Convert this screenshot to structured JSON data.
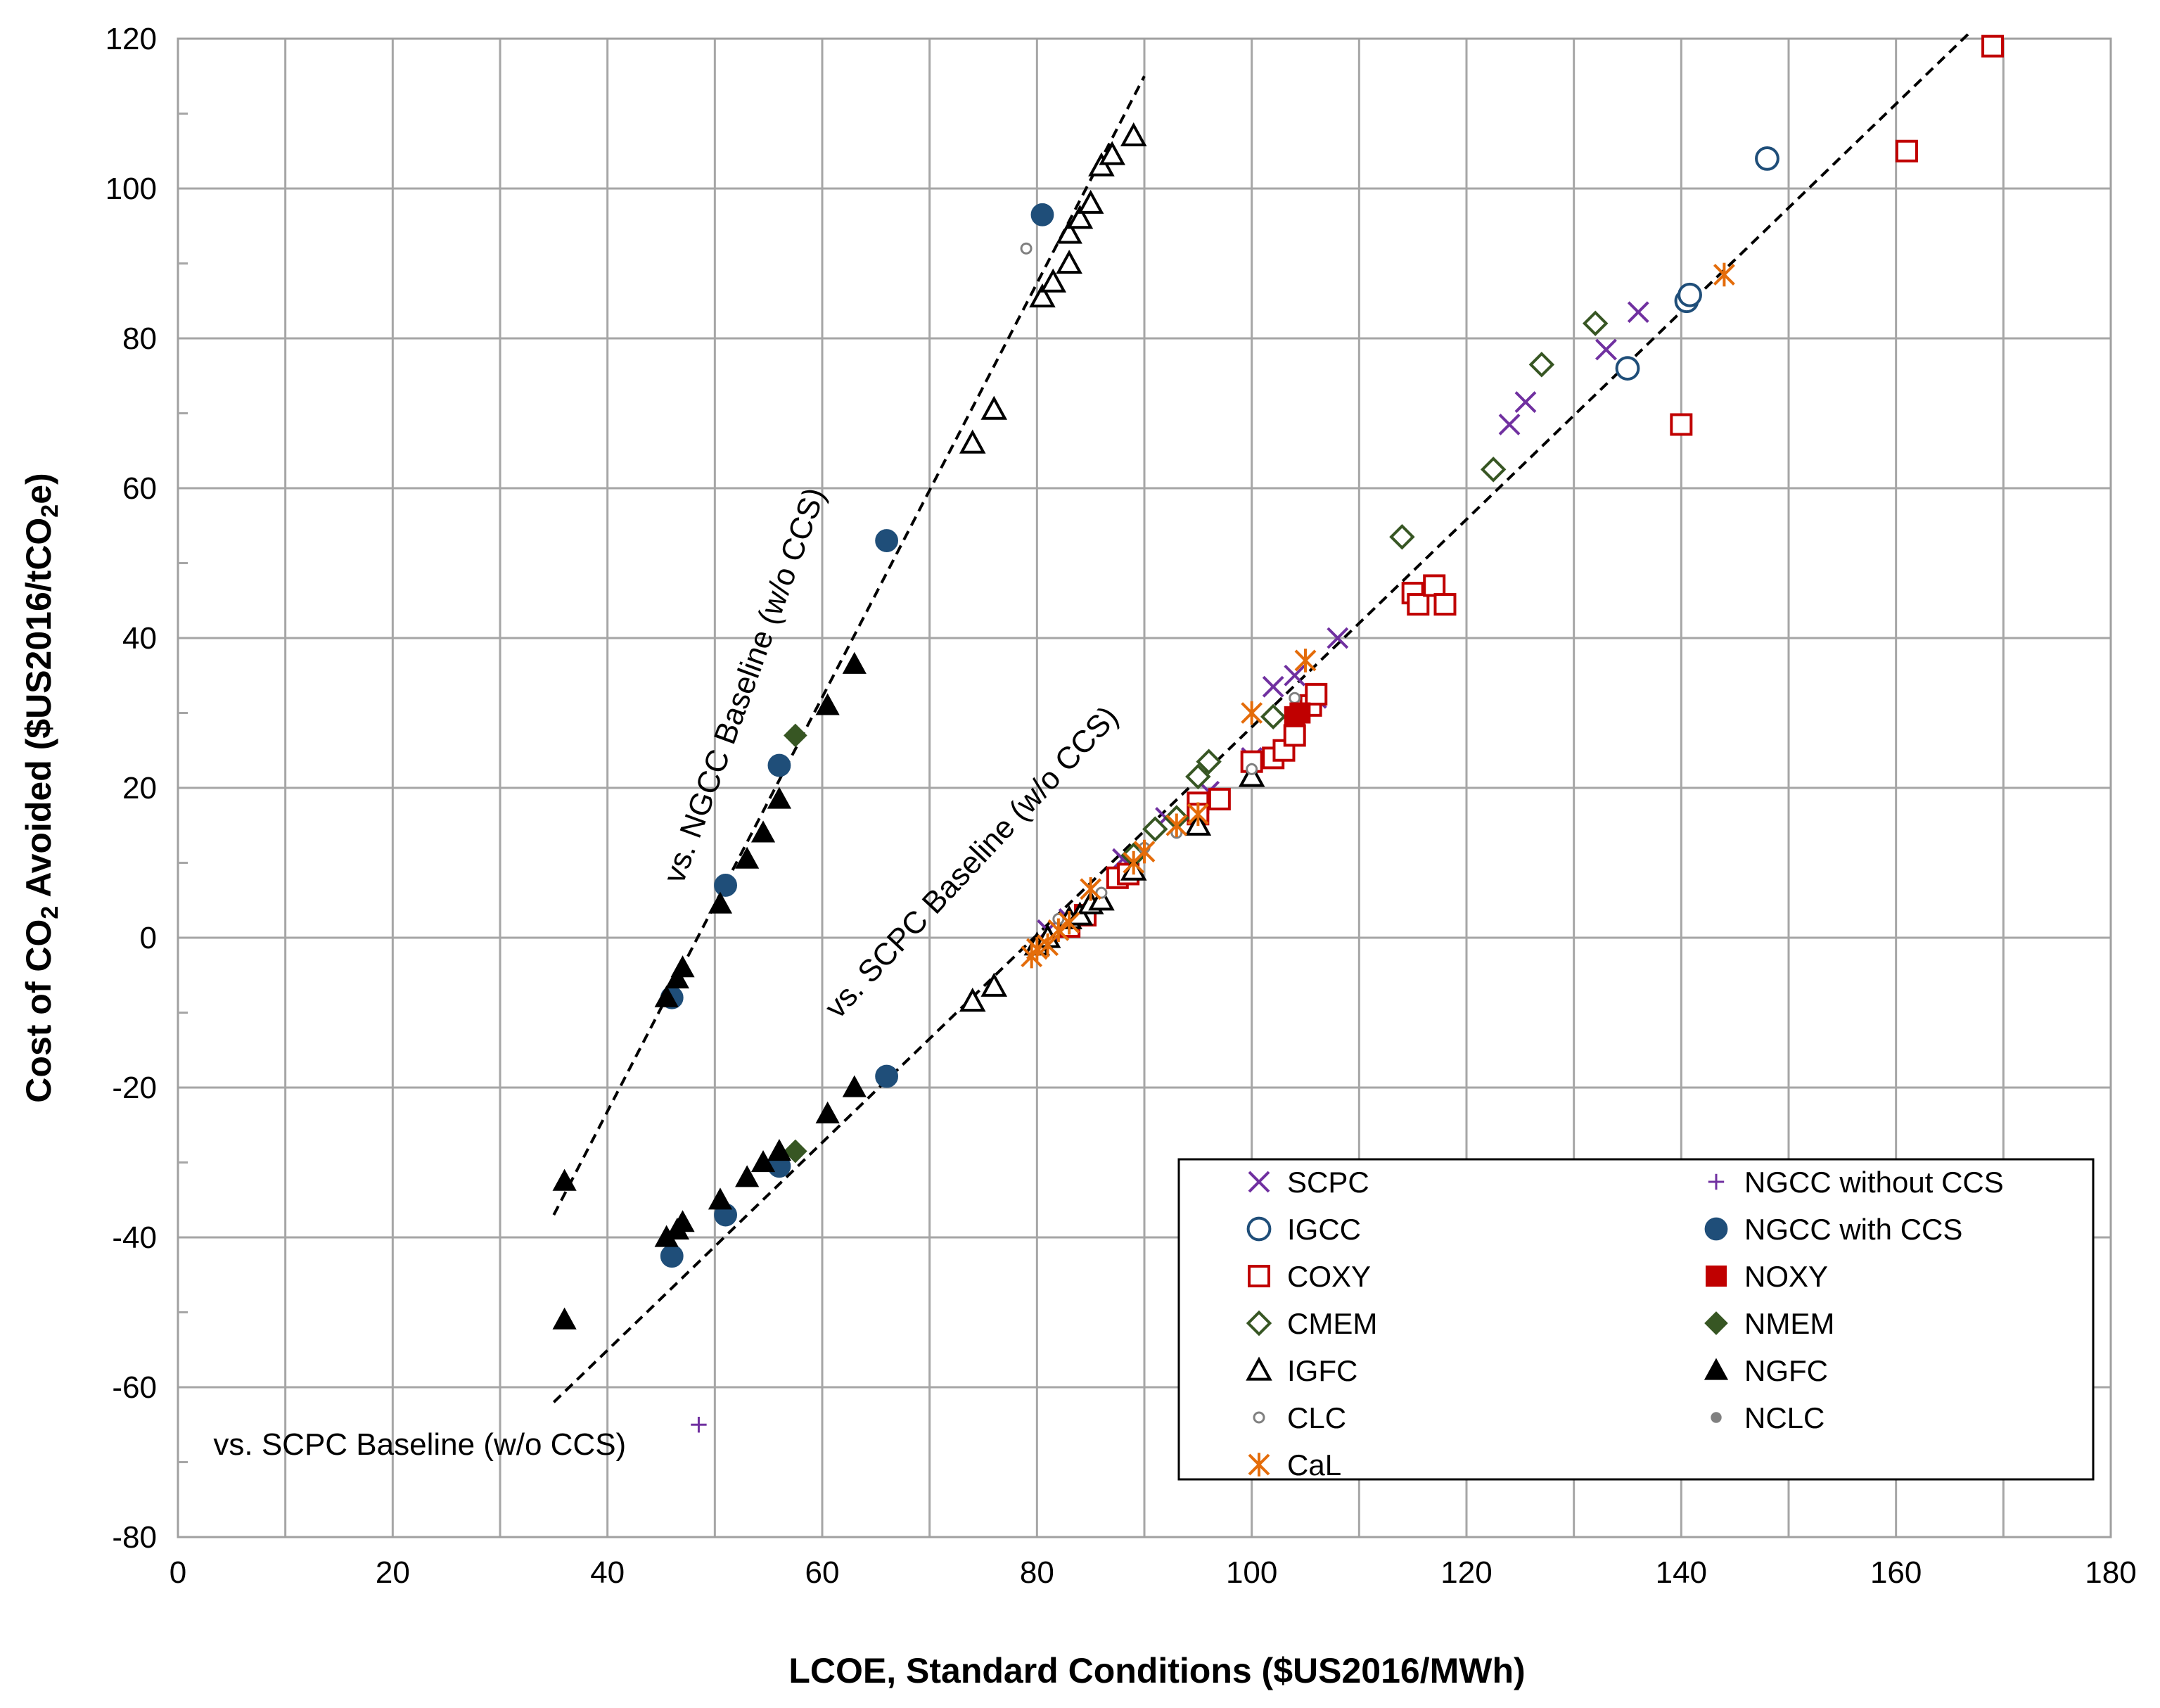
{
  "chart_data": {
    "type": "scatter",
    "title": "",
    "xlabel": "LCOE, Standard Conditions ($US2016/MWh)",
    "ylabel_parts": {
      "before_sub": "Cost of CO",
      "sub": "2",
      "after_sub": " Avoided ($US2016/tCO",
      "sub2": "2",
      "after_sub2": "e)"
    },
    "xlim": [
      0,
      180
    ],
    "ylim": [
      -80,
      120
    ],
    "x_ticks": [
      0,
      20,
      40,
      60,
      80,
      100,
      120,
      140,
      160,
      180
    ],
    "y_ticks": [
      -80,
      -60,
      -40,
      -20,
      0,
      20,
      40,
      60,
      80,
      100,
      120
    ],
    "grid": true,
    "legend_position": "bottom-right",
    "colors": {
      "purple": "#7030a0",
      "blue": "#1f4e79",
      "red": "#c00000",
      "green": "#375623",
      "black": "#000000",
      "gray": "#808080",
      "orange": "#e46c0a"
    },
    "trendlines": [
      {
        "name": "vs. NGCC Baseline (w/o CCS)",
        "x": [
          35,
          90
        ],
        "y": [
          -37,
          115
        ]
      },
      {
        "name": "vs. SCPC Baseline (w/o CCS)",
        "x": [
          35,
          167
        ],
        "y": [
          -62,
          121
        ]
      }
    ],
    "annotations": [
      {
        "text": "vs. NGCC Baseline (w/o CCS)",
        "x": 47,
        "y": 7,
        "angle": -70
      },
      {
        "text": "vs. SCPC Baseline (w/o CCS)",
        "x": 61.5,
        "y": -11,
        "angle": -47
      },
      {
        "text": "vs. SCPC Baseline (w/o CCS)",
        "x": 3.3,
        "y": -69,
        "angle": 0
      }
    ],
    "series": [
      {
        "name": "SCPC",
        "marker": "x",
        "color": "#7030a0",
        "points": [
          [
            102,
            33.5
          ],
          [
            104,
            35
          ],
          [
            108,
            40
          ],
          [
            124,
            68.5
          ],
          [
            125.5,
            71.5
          ],
          [
            133,
            78.5
          ],
          [
            136,
            83.5
          ],
          [
            81,
            1
          ],
          [
            83,
            2.5
          ],
          [
            88,
            10.5
          ],
          [
            92,
            16
          ],
          [
            96,
            19.5
          ],
          [
            100,
            24
          ],
          [
            106,
            32
          ]
        ]
      },
      {
        "name": "IGCC",
        "marker": "circle-open",
        "color": "#1f4e79",
        "points": [
          [
            135,
            76
          ],
          [
            140.5,
            85
          ],
          [
            140.8,
            85.8
          ],
          [
            148,
            104
          ]
        ]
      },
      {
        "name": "COXY",
        "marker": "square-open",
        "color": "#c00000",
        "points": [
          [
            83,
            1.5
          ],
          [
            84.5,
            3
          ],
          [
            87.5,
            8
          ],
          [
            88.5,
            8.5
          ],
          [
            95,
            18
          ],
          [
            95,
            16.5
          ],
          [
            97,
            18.5
          ],
          [
            100,
            23.5
          ],
          [
            102,
            24
          ],
          [
            103,
            25
          ],
          [
            104,
            27
          ],
          [
            105.5,
            31
          ],
          [
            106,
            32.5
          ],
          [
            115,
            46
          ],
          [
            115.5,
            44.5
          ],
          [
            117,
            47
          ],
          [
            118,
            44.5
          ],
          [
            140,
            68.5
          ],
          [
            161,
            105
          ],
          [
            169,
            119
          ]
        ]
      },
      {
        "name": "CMEM",
        "marker": "diamond-open",
        "color": "#375623",
        "points": [
          [
            89,
            11
          ],
          [
            91,
            14.5
          ],
          [
            93,
            16
          ],
          [
            95,
            21.5
          ],
          [
            96,
            23.5
          ],
          [
            102,
            29.5
          ],
          [
            114,
            53.5
          ],
          [
            122.5,
            62.5
          ],
          [
            127,
            76.5
          ],
          [
            132,
            82
          ]
        ]
      },
      {
        "name": "IGFC",
        "marker": "triangle-open",
        "color": "#000000",
        "points": [
          [
            74,
            -8.5
          ],
          [
            76,
            -6.5
          ],
          [
            80,
            -1
          ],
          [
            81,
            0
          ],
          [
            83,
            2.5
          ],
          [
            84,
            3
          ],
          [
            85,
            4.5
          ],
          [
            86,
            5
          ],
          [
            89,
            9
          ],
          [
            95,
            15
          ],
          [
            100,
            21.5
          ],
          [
            74,
            66
          ],
          [
            76,
            70.5
          ],
          [
            80.5,
            85.5
          ],
          [
            81.5,
            87.5
          ],
          [
            83,
            90
          ],
          [
            83,
            94
          ],
          [
            84,
            96
          ],
          [
            85,
            98
          ],
          [
            86,
            103
          ],
          [
            87,
            104.5
          ],
          [
            89,
            107
          ]
        ]
      },
      {
        "name": "CLC",
        "marker": "small-circle-open",
        "color": "#808080",
        "points": [
          [
            79,
            92
          ],
          [
            82,
            2.5
          ],
          [
            86,
            6
          ],
          [
            90,
            12
          ],
          [
            93,
            14
          ],
          [
            100,
            22.5
          ],
          [
            104,
            32
          ]
        ]
      },
      {
        "name": "CaL",
        "marker": "asterisk",
        "color": "#e46c0a",
        "points": [
          [
            79.5,
            -2.5
          ],
          [
            80,
            -1.5
          ],
          [
            81,
            -1
          ],
          [
            82,
            1
          ],
          [
            83,
            2
          ],
          [
            85,
            6.5
          ],
          [
            89,
            10
          ],
          [
            90,
            11.5
          ],
          [
            93,
            15
          ],
          [
            95,
            16.5
          ],
          [
            100,
            30
          ],
          [
            105,
            37
          ],
          [
            144,
            88.5
          ]
        ]
      },
      {
        "name": "NGCC without CCS",
        "marker": "plus",
        "color": "#7030a0",
        "points": [
          [
            48.5,
            -65
          ]
        ]
      },
      {
        "name": "NGCC with CCS",
        "marker": "circle-filled",
        "color": "#1f4e79",
        "points": [
          [
            46,
            -8
          ],
          [
            51,
            7
          ],
          [
            56,
            23
          ],
          [
            66,
            53
          ],
          [
            80.5,
            96.5
          ],
          [
            46,
            -42.5
          ],
          [
            51,
            -37
          ],
          [
            56,
            -30.5
          ],
          [
            66,
            -18.5
          ]
        ]
      },
      {
        "name": "NOXY",
        "marker": "square-filled",
        "color": "#c00000",
        "points": [
          [
            104,
            29.5
          ],
          [
            104.5,
            30
          ]
        ]
      },
      {
        "name": "NMEM",
        "marker": "diamond-filled",
        "color": "#375623",
        "points": [
          [
            57.5,
            27
          ],
          [
            57.5,
            -28.5
          ]
        ]
      },
      {
        "name": "NGFC",
        "marker": "triangle-filled",
        "color": "#000000",
        "points": [
          [
            36,
            -32.5
          ],
          [
            45.5,
            -8
          ],
          [
            46.5,
            -5.5
          ],
          [
            47,
            -4
          ],
          [
            50.5,
            4.5
          ],
          [
            53,
            10.5
          ],
          [
            54.5,
            14
          ],
          [
            56,
            18.5
          ],
          [
            60.5,
            31
          ],
          [
            63,
            36.5
          ],
          [
            36,
            -51
          ],
          [
            45.5,
            -40
          ],
          [
            46.5,
            -39
          ],
          [
            47,
            -38
          ],
          [
            50.5,
            -35
          ],
          [
            53,
            -32
          ],
          [
            54.5,
            -30
          ],
          [
            56,
            -28.5
          ],
          [
            60.5,
            -23.5
          ],
          [
            63,
            -20
          ]
        ]
      },
      {
        "name": "NCLC",
        "marker": "small-circle-filled",
        "color": "#808080",
        "points": []
      }
    ]
  }
}
